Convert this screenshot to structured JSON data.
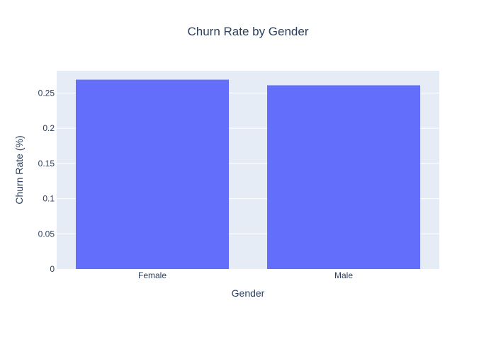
{
  "chart_data": {
    "type": "bar",
    "title": "Churn Rate by Gender",
    "xlabel": "Gender",
    "ylabel": "Churn Rate (%)",
    "categories": [
      "Female",
      "Male"
    ],
    "values": [
      0.269,
      0.261
    ],
    "ylim": [
      0,
      0.2816
    ],
    "yticks": [
      0,
      0.05,
      0.1,
      0.15,
      0.2,
      0.25
    ],
    "ytick_labels": [
      "0",
      "0.05",
      "0.1",
      "0.15",
      "0.2",
      "0.25"
    ],
    "grid": true,
    "legend": "none",
    "colors": {
      "bar": "#636efa",
      "plot_background": "#e5ecf6",
      "grid": "#ffffff",
      "text": "#2a3f5f"
    }
  }
}
